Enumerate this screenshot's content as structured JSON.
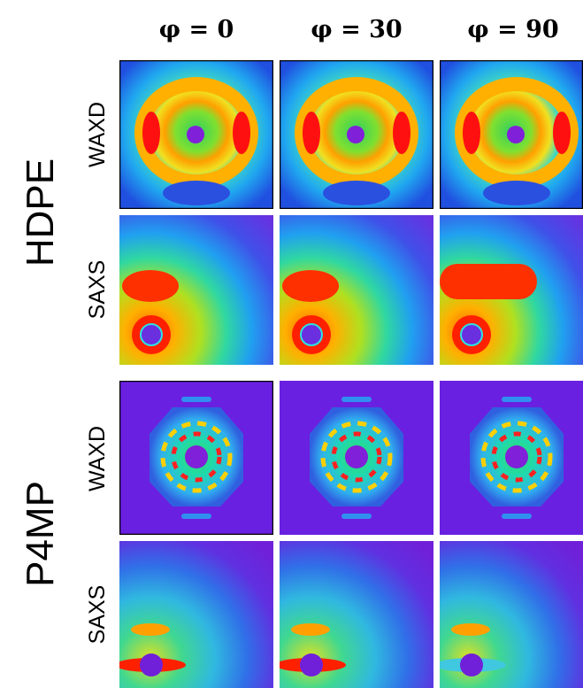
{
  "columns": [
    "φ = 0",
    "φ = 30",
    "φ = 90"
  ],
  "groups": [
    {
      "label": "HDPE",
      "rows": [
        "WAXD",
        "SAXS"
      ]
    },
    {
      "label": "P4MP",
      "rows": [
        "WAXD",
        "SAXS"
      ]
    }
  ]
}
